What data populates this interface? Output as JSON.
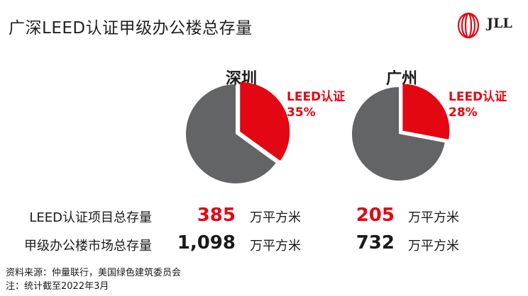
{
  "title": "广深LEED认证甲级办公楼总存量",
  "logo": {
    "text": "JLL",
    "color": "#e30613"
  },
  "colors": {
    "leed": "#e30613",
    "other": "#636466",
    "dark": "#1a1a1a"
  },
  "chart_data": [
    {
      "type": "pie",
      "title": "深圳",
      "slices": [
        {
          "label": "LEED认证",
          "value": 35,
          "display": "35%",
          "color": "#e30613",
          "exploded": true
        },
        {
          "label": "",
          "value": 65,
          "color": "#636466"
        }
      ]
    },
    {
      "type": "pie",
      "title": "广州",
      "slices": [
        {
          "label": "LEED认证",
          "value": 28,
          "display": "28%",
          "color": "#e30613",
          "exploded": true
        },
        {
          "label": "",
          "value": 72,
          "color": "#636466"
        }
      ]
    }
  ],
  "rows": [
    {
      "label": "LEED认证项目总存量",
      "values": [
        {
          "value": "385",
          "unit": "万平方米",
          "color": "#e30613"
        },
        {
          "value": "205",
          "unit": "万平方米",
          "color": "#e30613"
        }
      ]
    },
    {
      "label": "甲级办公楼市场总存量",
      "values": [
        {
          "value": "1,098",
          "unit": "万平方米",
          "color": "#1a1a1a"
        },
        {
          "value": "732",
          "unit": "万平方米",
          "color": "#1a1a1a"
        }
      ]
    }
  ],
  "footnotes": {
    "source": "资料来源：仲量联行，美国绿色建筑委员会",
    "note": "注：统计截至2022年3月"
  }
}
